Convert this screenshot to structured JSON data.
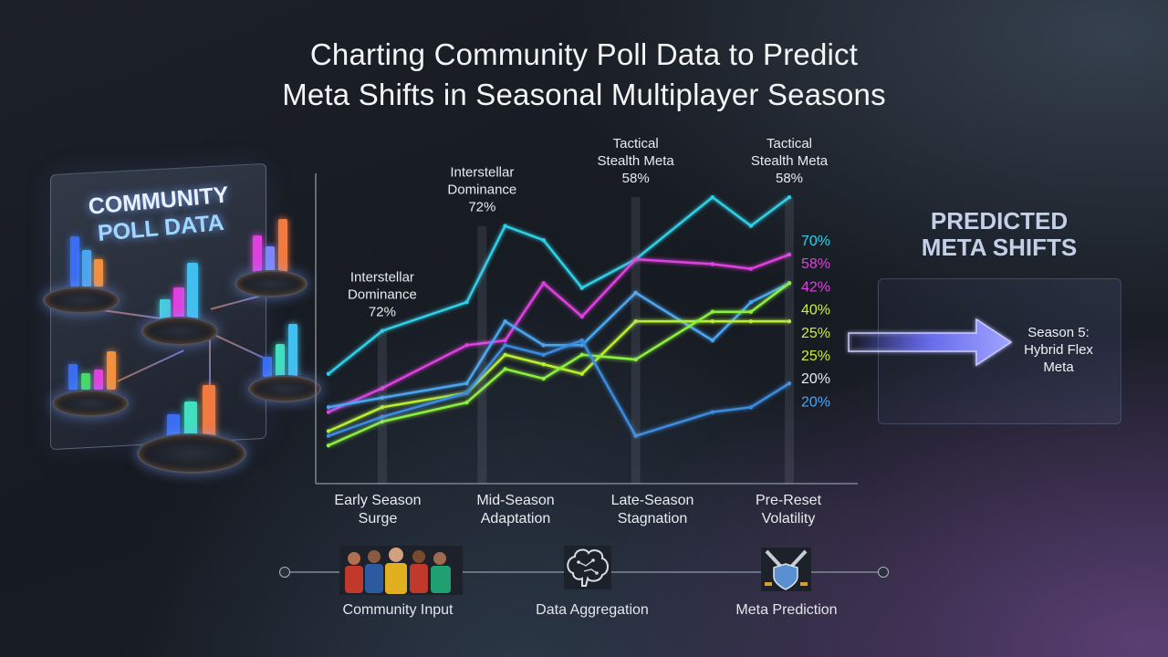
{
  "title": {
    "line1": "Charting Community Poll Data to Predict",
    "line2": "Meta Shifts in Seasonal Multiplayer Seasons"
  },
  "poll_panel": {
    "line1": "COMMUNITY",
    "line2": "POLL DATA"
  },
  "predicted": {
    "title_line1": "PREDICTED",
    "title_line2": "META SHIFTS",
    "season_line1": "Season 5:",
    "season_line2": "Hybrid Flex",
    "season_line3": "Meta",
    "arrow_color": "#7b7dff"
  },
  "flow": {
    "items": [
      {
        "label": "Community Input",
        "icon": "players-icon"
      },
      {
        "label": "Data Aggregation",
        "icon": "brain-icon"
      },
      {
        "label": "Meta Prediction",
        "icon": "swords-shield-icon"
      }
    ]
  },
  "chart_data": {
    "type": "line",
    "categories": [
      "Early Season\nSurge",
      "Mid-Season\nAdaptation",
      "Late-Season\nStagnation",
      "Pre-Reset\nVolatility"
    ],
    "x": [
      0,
      0.35,
      0.9,
      1.15,
      1.4,
      1.65,
      2.0,
      2.5,
      2.75,
      3.0
    ],
    "series": [
      {
        "color": "#2fd0e8",
        "values": [
          33,
          42,
          48,
          64,
          61,
          51,
          57,
          70,
          64,
          70
        ]
      },
      {
        "color": "#e040e0",
        "values": [
          25,
          30,
          39,
          40,
          52,
          45,
          57,
          56,
          55,
          58
        ]
      },
      {
        "color": "#4aa6f0",
        "values": [
          26,
          28,
          31,
          44,
          39,
          39,
          50,
          40,
          48,
          52
        ]
      },
      {
        "color": "#b8f030",
        "values": [
          21,
          26,
          29,
          37,
          35,
          33,
          44,
          44,
          44,
          44
        ]
      },
      {
        "color": "#8cf040",
        "values": [
          18,
          23,
          27,
          34,
          32,
          37,
          36,
          46,
          46,
          52
        ]
      },
      {
        "color": "#3a8ce0",
        "values": [
          20,
          24,
          29,
          39,
          37,
          40,
          20,
          25,
          26,
          31
        ]
      }
    ],
    "right_labels": [
      {
        "text": "70%",
        "color": "#2fd0e8"
      },
      {
        "text": "58%",
        "color": "#e040e0"
      },
      {
        "text": "42%",
        "color": "#e040e0"
      },
      {
        "text": "40%",
        "color": "#c8f040"
      },
      {
        "text": "25%",
        "color": "#c8f040"
      },
      {
        "text": "25%",
        "color": "#c8f040"
      },
      {
        "text": "20%",
        "color": "#e8ebf0"
      },
      {
        "text": "20%",
        "color": "#4aa6f0"
      }
    ],
    "annotations": [
      {
        "text": "Interstellar\nDominance\n72%",
        "at_x": 0.35,
        "at_y": 42
      },
      {
        "text": "Interstellar\nDominance\n72%",
        "at_x": 1.0,
        "at_y": 64
      },
      {
        "text": "Tactical\nStealth Meta\n58%",
        "at_x": 2.0,
        "at_y": 70
      },
      {
        "text": "Tactical\nStealth Meta\n58%",
        "at_x": 3.0,
        "at_y": 70
      }
    ],
    "ylim": [
      10,
      75
    ],
    "xlim": [
      0,
      3.0
    ],
    "grid": false
  }
}
